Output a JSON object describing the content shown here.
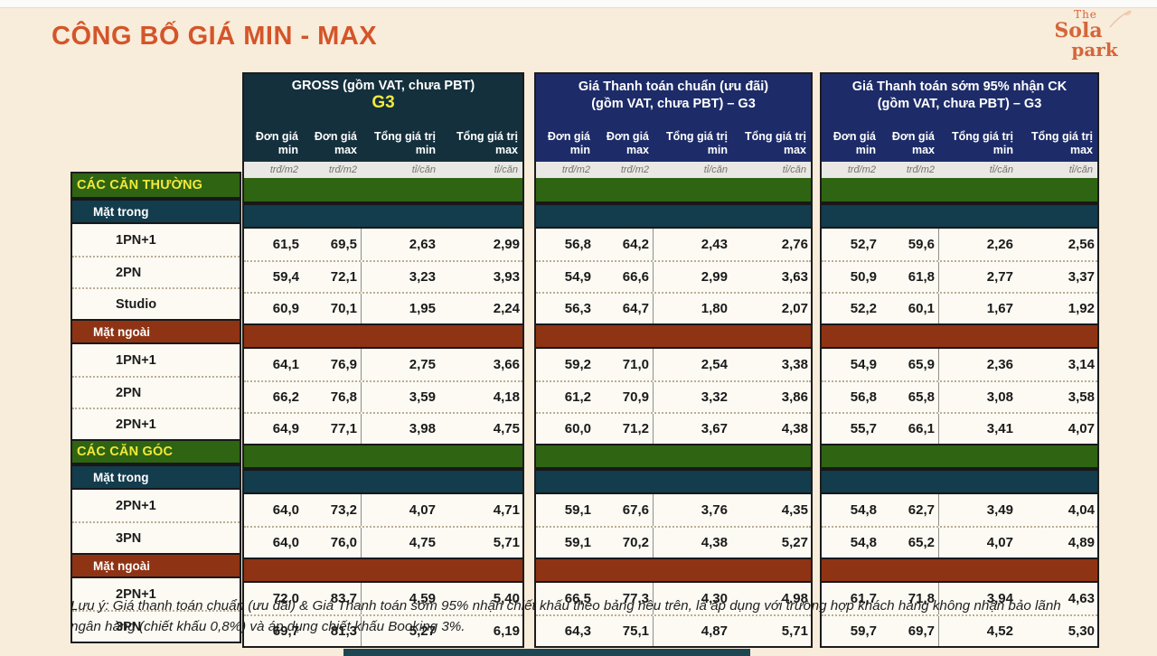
{
  "page": {
    "title": "CÔNG BỐ GIÁ MIN - MAX",
    "note": "Lưu ý: Giá thanh toán chuẩn (ưu đãi) & Giá Thanh toán sớm 95% nhận chiết khấu theo bảng nêu trên, là áp dụng với trường hợp khách hàng không nhận bảo lãnh ngân hàng (chiết khấu 0,8%) và áp dụng chiết khấu Booking 3%.",
    "logo": {
      "line1": "The",
      "line2": "Sola",
      "line3": "park"
    }
  },
  "colors": {
    "cream_bg": "#f8ecda",
    "title_orange": "#d4552a",
    "logo_orange": "#d4663a",
    "header_teal": "#14303d",
    "header_navy": "#1d2c68",
    "band_green": "#2f6413",
    "band_teal": "#133c4d",
    "band_red": "#8e3414",
    "yellow": "#f2e93a",
    "row_bg": "#fcfaf3",
    "units_bg": "#e9e8e4",
    "bottom_bar": "#1d4652"
  },
  "columns": {
    "headers": [
      [
        "Đơn giá",
        "min"
      ],
      [
        "Đơn giá",
        "max"
      ],
      [
        "Tổng giá trị",
        "min"
      ],
      [
        "Tổng giá trị",
        "max"
      ]
    ],
    "units": [
      "trđ/m2",
      "trđ/m2",
      "tỉ/căn",
      "tỉ/căn"
    ]
  },
  "groups": [
    {
      "title_line1": "GROSS (gồm VAT, chưa PBT)",
      "title_line2": "G3"
    },
    {
      "title_line1": "Giá Thanh toán chuẩn (ưu đãi)",
      "title_line2": "(gồm VAT, chưa PBT) – G3"
    },
    {
      "title_line1": "Giá Thanh toán sớm 95% nhận CK",
      "title_line2": "(gồm VAT, chưa PBT) – G3"
    }
  ],
  "rows": [
    {
      "type": "section",
      "label": "CÁC CĂN THƯỜNG"
    },
    {
      "type": "face",
      "variant": "teal",
      "label": "Mặt trong"
    },
    {
      "type": "data",
      "label": "1PN+1",
      "values": [
        [
          "61,5",
          "69,5",
          "2,63",
          "2,99"
        ],
        [
          "56,8",
          "64,2",
          "2,43",
          "2,76"
        ],
        [
          "52,7",
          "59,6",
          "2,26",
          "2,56"
        ]
      ]
    },
    {
      "type": "data",
      "label": "2PN",
      "values": [
        [
          "59,4",
          "72,1",
          "3,23",
          "3,93"
        ],
        [
          "54,9",
          "66,6",
          "2,99",
          "3,63"
        ],
        [
          "50,9",
          "61,8",
          "2,77",
          "3,37"
        ]
      ]
    },
    {
      "type": "data",
      "label": "Studio",
      "values": [
        [
          "60,9",
          "70,1",
          "1,95",
          "2,24"
        ],
        [
          "56,3",
          "64,7",
          "1,80",
          "2,07"
        ],
        [
          "52,2",
          "60,1",
          "1,67",
          "1,92"
        ]
      ]
    },
    {
      "type": "face",
      "variant": "red",
      "label": "Mặt ngoài"
    },
    {
      "type": "data",
      "label": "1PN+1",
      "values": [
        [
          "64,1",
          "76,9",
          "2,75",
          "3,66"
        ],
        [
          "59,2",
          "71,0",
          "2,54",
          "3,38"
        ],
        [
          "54,9",
          "65,9",
          "2,36",
          "3,14"
        ]
      ]
    },
    {
      "type": "data",
      "label": "2PN",
      "values": [
        [
          "66,2",
          "76,8",
          "3,59",
          "4,18"
        ],
        [
          "61,2",
          "70,9",
          "3,32",
          "3,86"
        ],
        [
          "56,8",
          "65,8",
          "3,08",
          "3,58"
        ]
      ]
    },
    {
      "type": "data",
      "label": "2PN+1",
      "values": [
        [
          "64,9",
          "77,1",
          "3,98",
          "4,75"
        ],
        [
          "60,0",
          "71,2",
          "3,67",
          "4,38"
        ],
        [
          "55,7",
          "66,1",
          "3,41",
          "4,07"
        ]
      ]
    },
    {
      "type": "section",
      "label": "CÁC CĂN GÓC"
    },
    {
      "type": "face",
      "variant": "teal",
      "label": "Mặt trong"
    },
    {
      "type": "data",
      "label": "2PN+1",
      "values": [
        [
          "64,0",
          "73,2",
          "4,07",
          "4,71"
        ],
        [
          "59,1",
          "67,6",
          "3,76",
          "4,35"
        ],
        [
          "54,8",
          "62,7",
          "3,49",
          "4,04"
        ]
      ]
    },
    {
      "type": "data",
      "label": "3PN",
      "values": [
        [
          "64,0",
          "76,0",
          "4,75",
          "5,71"
        ],
        [
          "59,1",
          "70,2",
          "4,38",
          "5,27"
        ],
        [
          "54,8",
          "65,2",
          "4,07",
          "4,89"
        ]
      ]
    },
    {
      "type": "face",
      "variant": "red",
      "label": "Mặt ngoài"
    },
    {
      "type": "data",
      "label": "2PN+1",
      "values": [
        [
          "72,0",
          "83,7",
          "4,59",
          "5,40"
        ],
        [
          "66,5",
          "77,3",
          "4,30",
          "4.98"
        ],
        [
          "61,7",
          "71,8",
          "3,94",
          "4,63"
        ]
      ]
    },
    {
      "type": "data",
      "label": "3PN",
      "values": [
        [
          "69,7",
          "81,3",
          "5,27",
          "6,19"
        ],
        [
          "64,3",
          "75,1",
          "4,87",
          "5,71"
        ],
        [
          "59,7",
          "69,7",
          "4,52",
          "5,30"
        ]
      ]
    }
  ]
}
